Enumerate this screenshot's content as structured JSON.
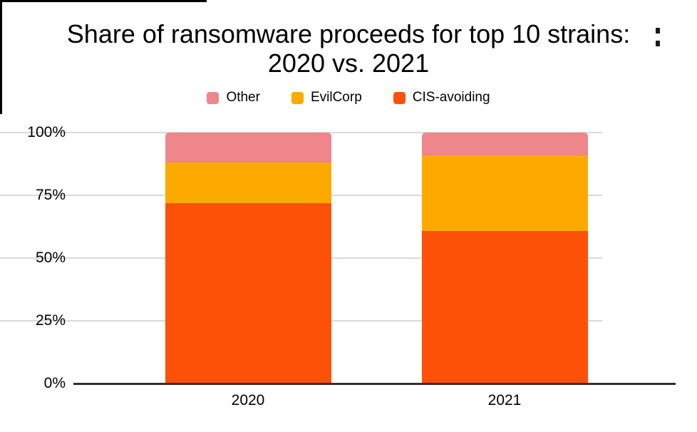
{
  "title": {
    "line1": "Share of ransomware proceeds for top 10 strains:",
    "line2": "2020 vs. 2021"
  },
  "legend": {
    "items": [
      {
        "label": "Other",
        "color": "#ee868b"
      },
      {
        "label": "EvilCorp",
        "color": "#fcaa00"
      },
      {
        "label": "CIS-avoiding",
        "color": "#fe5108"
      }
    ]
  },
  "y_axis": {
    "tick_labels": [
      "100%",
      "75%",
      "50%",
      "25%",
      "0%"
    ]
  },
  "x_axis": {
    "labels": [
      "2020",
      "2021"
    ]
  },
  "chart_data": {
    "type": "bar",
    "stacked": true,
    "stack_unit": "percent",
    "title": "Share of ransomware proceeds for top 10 strains: 2020 vs. 2021",
    "categories": [
      "2020",
      "2021"
    ],
    "series": [
      {
        "name": "CIS-avoiding",
        "color": "#fe5108",
        "values": [
          72,
          61
        ]
      },
      {
        "name": "EvilCorp",
        "color": "#fcaa00",
        "values": [
          16,
          30
        ]
      },
      {
        "name": "Other",
        "color": "#ee868b",
        "values": [
          12,
          9
        ]
      }
    ],
    "ylim": [
      0,
      100
    ],
    "y_ticks": [
      0,
      25,
      50,
      75,
      100
    ],
    "grid": true,
    "legend_position": "top"
  },
  "colors": {
    "axis_line": "#2f2f2f",
    "gridline": "#d9d9d9",
    "text": "#000000",
    "background": "#ffffff"
  }
}
